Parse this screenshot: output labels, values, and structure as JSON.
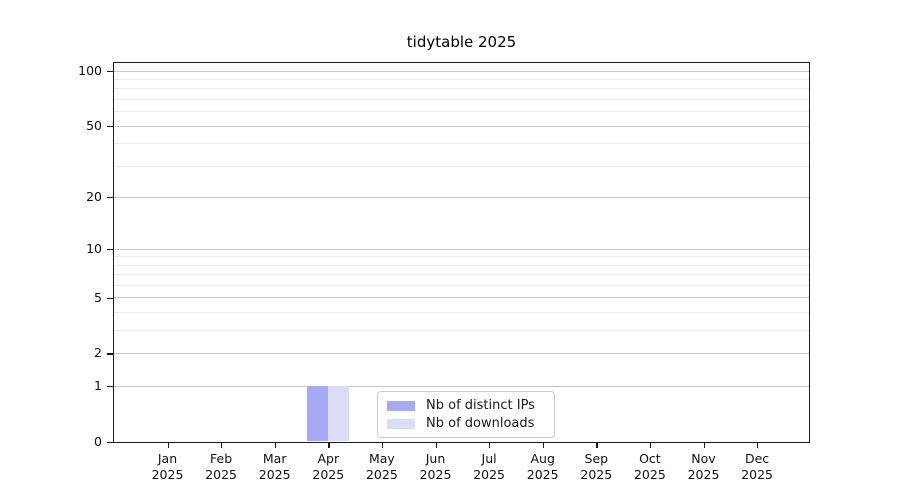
{
  "chart_data": {
    "type": "bar",
    "title": "tidytable 2025",
    "year": "2025",
    "categories": [
      "Jan",
      "Feb",
      "Mar",
      "Apr",
      "May",
      "Jun",
      "Jul",
      "Aug",
      "Sep",
      "Oct",
      "Nov",
      "Dec"
    ],
    "series": [
      {
        "name": "Nb of distinct IPs",
        "color": "#a8a8f7",
        "values": [
          0,
          0,
          0,
          1,
          0,
          0,
          0,
          0,
          0,
          0,
          0,
          0
        ]
      },
      {
        "name": "Nb of downloads",
        "color": "#dbdbfa",
        "values": [
          0,
          0,
          0,
          1,
          0,
          0,
          0,
          0,
          0,
          0,
          0,
          0
        ]
      }
    ],
    "y_axis": {
      "scale": "log1p",
      "major_ticks": [
        0,
        1,
        2,
        5,
        10,
        20,
        50,
        100
      ],
      "minor_ticks": [
        3,
        4,
        6,
        7,
        8,
        9,
        30,
        40,
        60,
        70,
        80,
        90
      ],
      "axis_max": 110
    },
    "x_axis": {
      "tick_label_style": "month over year",
      "xlabel": ""
    },
    "legend": {
      "position": "inside-bottom-center"
    },
    "colors": {
      "grid_major": "#c7c7c7",
      "grid_minor": "#ebebeb",
      "spine": "#1a1a1a",
      "background": "#ffffff"
    }
  }
}
